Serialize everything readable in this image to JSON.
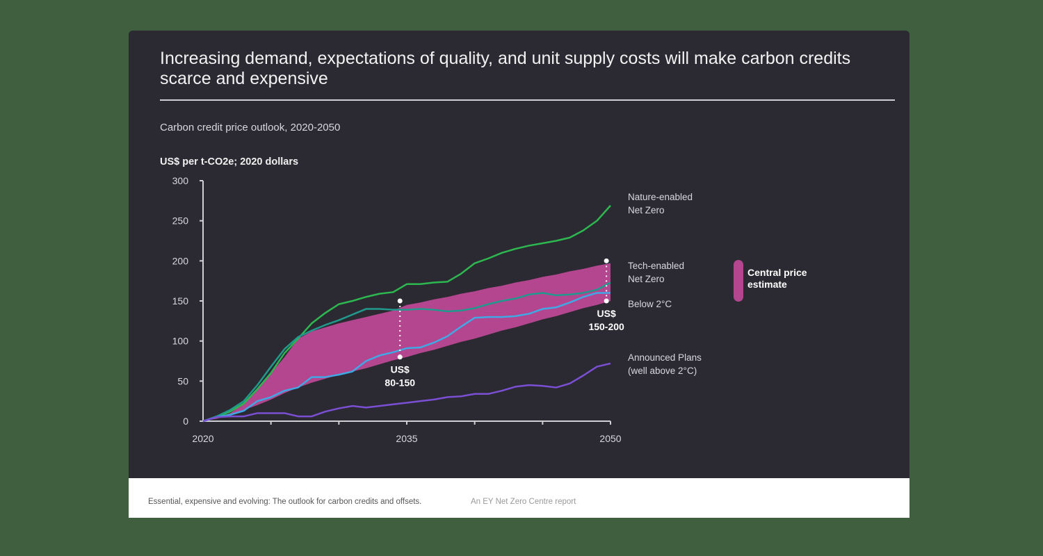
{
  "title": "Increasing demand, expectations of quality, and unit supply costs will make carbon credits scarce and expensive",
  "footer": {
    "source": "Essential, expensive and evolving: The outlook for carbon credits and offsets.",
    "publisher": "An EY Net Zero Centre report"
  },
  "colors": {
    "nature": "#2db84f",
    "tech": "#1f9a8c",
    "below2": "#3fa9e6",
    "announced": "#7b4fd4",
    "band": "#b4468f"
  },
  "chart_data": {
    "type": "line",
    "title": "Carbon credit price outlook, 2020-2050",
    "ylabel": "US$ per t-CO2e; 2020 dollars",
    "xlabel": "",
    "xlim": [
      2020,
      2050
    ],
    "ylim": [
      0,
      300
    ],
    "yticks": [
      "0",
      "50",
      "100",
      "150",
      "200",
      "250",
      "300"
    ],
    "xticks": [
      "2020",
      "2035",
      "2050"
    ],
    "x": [
      2020,
      2021,
      2022,
      2023,
      2024,
      2025,
      2026,
      2027,
      2028,
      2029,
      2030,
      2031,
      2032,
      2033,
      2034,
      2035,
      2036,
      2037,
      2038,
      2039,
      2040,
      2041,
      2042,
      2043,
      2044,
      2045,
      2046,
      2047,
      2048,
      2049,
      2050
    ],
    "series": [
      {
        "name": "Nature-enabled Net Zero",
        "label": [
          "Nature-enabled",
          "Net Zero"
        ],
        "color_key": "nature",
        "values": [
          0,
          5,
          12,
          22,
          40,
          60,
          85,
          103,
          122,
          135,
          146,
          150,
          155,
          159,
          161,
          171,
          171,
          173,
          174,
          184,
          197,
          203,
          210,
          215,
          219,
          222,
          225,
          229,
          238,
          250,
          269
        ]
      },
      {
        "name": "Tech-enabled Net Zero",
        "label": [
          "Tech-enabled",
          "Net Zero"
        ],
        "color_key": "tech",
        "values": [
          0,
          6,
          14,
          25,
          45,
          68,
          90,
          105,
          113,
          120,
          126,
          133,
          140,
          140,
          139,
          139,
          140,
          139,
          137,
          138,
          141,
          146,
          150,
          153,
          158,
          160,
          157,
          158,
          160,
          164,
          173
        ]
      },
      {
        "name": "Below 2°C",
        "label": [
          "Below 2°C"
        ],
        "color_key": "below2",
        "values": [
          0,
          5,
          8,
          13,
          25,
          30,
          38,
          42,
          55,
          55,
          58,
          62,
          75,
          82,
          86,
          91,
          92,
          98,
          106,
          118,
          129,
          130,
          130,
          131,
          134,
          140,
          142,
          148,
          155,
          160,
          160
        ]
      },
      {
        "name": "Announced Plans (well above 2°C)",
        "label": [
          "Announced Plans",
          "(well above 2°C)"
        ],
        "color_key": "announced",
        "values": [
          0,
          5,
          6,
          6,
          10,
          10,
          10,
          6,
          6,
          12,
          16,
          19,
          17,
          19,
          21,
          23,
          25,
          27,
          30,
          31,
          34,
          34,
          38,
          43,
          45,
          44,
          42,
          47,
          57,
          68,
          72
        ]
      }
    ],
    "band": {
      "name": "Central price estimate",
      "label": [
        "Central price",
        "estimate"
      ],
      "lower": [
        0,
        3,
        8,
        14,
        20,
        27,
        35,
        42,
        48,
        53,
        58,
        62,
        66,
        71,
        76,
        80,
        85,
        89,
        94,
        99,
        103,
        108,
        113,
        117,
        122,
        127,
        131,
        136,
        141,
        145,
        150
      ],
      "upper": [
        0,
        4,
        10,
        22,
        40,
        60,
        80,
        103,
        112,
        117,
        122,
        126,
        130,
        134,
        138,
        145,
        148,
        152,
        155,
        159,
        162,
        166,
        169,
        173,
        176,
        180,
        183,
        187,
        190,
        194,
        197
      ]
    },
    "annotations": [
      {
        "x": 2034.5,
        "range": [
          80,
          150
        ],
        "label": [
          "US$",
          "80-150"
        ],
        "position": "below"
      },
      {
        "x": 2049.7,
        "range": [
          150,
          200
        ],
        "label": [
          "US$",
          "150-200"
        ],
        "position": "below"
      }
    ]
  }
}
